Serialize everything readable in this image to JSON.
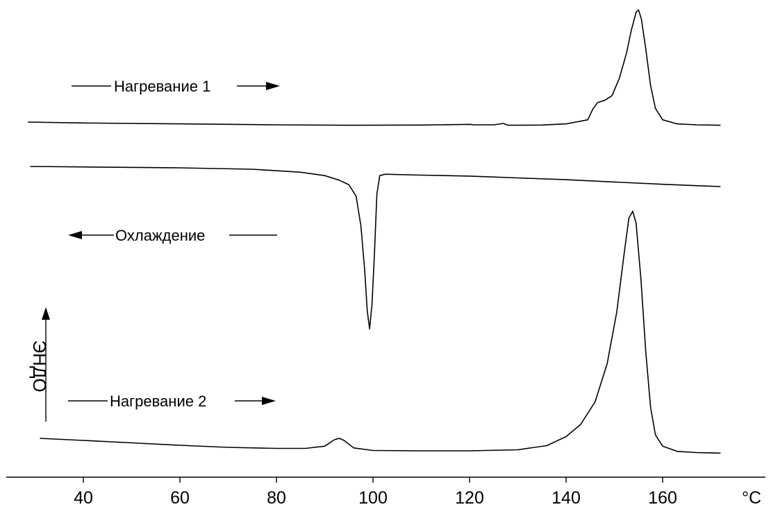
{
  "chart_data": {
    "type": "line",
    "title": "",
    "xlabel": "",
    "x_unit": "°C",
    "ylabel": "ЭНДО",
    "xlim": [
      27,
      173
    ],
    "x_ticks": [
      40,
      60,
      80,
      100,
      120,
      140,
      160
    ],
    "grid": false,
    "y_ticks": false,
    "series": [
      {
        "name": "Нагревание 1",
        "direction": "right",
        "points": [
          [
            28.5,
            0.0
          ],
          [
            40,
            -0.04
          ],
          [
            60,
            -0.08
          ],
          [
            80,
            -0.12
          ],
          [
            95,
            -0.14
          ],
          [
            110,
            -0.13
          ],
          [
            120,
            -0.1
          ],
          [
            121,
            -0.12
          ],
          [
            125,
            -0.12
          ],
          [
            127,
            -0.06
          ],
          [
            128,
            -0.14
          ],
          [
            135,
            -0.13
          ],
          [
            140,
            -0.08
          ],
          [
            143,
            0.04
          ],
          [
            144.5,
            0.1
          ],
          [
            145.5,
            0.55
          ],
          [
            146.5,
            0.85
          ],
          [
            148,
            0.95
          ],
          [
            149.5,
            1.15
          ],
          [
            151,
            1.9
          ],
          [
            152.5,
            3.0
          ],
          [
            153.5,
            4.0
          ],
          [
            154.5,
            4.8
          ],
          [
            155,
            4.9
          ],
          [
            155.6,
            4.5
          ],
          [
            156.5,
            3.2
          ],
          [
            157.5,
            1.6
          ],
          [
            158.5,
            0.6
          ],
          [
            160,
            0.1
          ],
          [
            163,
            -0.08
          ],
          [
            167,
            -0.12
          ],
          [
            172,
            -0.14
          ]
        ]
      },
      {
        "name": "Охлаждение",
        "direction": "left",
        "points": [
          [
            29,
            0.0
          ],
          [
            40,
            -0.02
          ],
          [
            60,
            -0.06
          ],
          [
            75,
            -0.12
          ],
          [
            85,
            -0.25
          ],
          [
            90,
            -0.4
          ],
          [
            93,
            -0.6
          ],
          [
            95,
            -0.8
          ],
          [
            96.5,
            -1.3
          ],
          [
            97.5,
            -2.6
          ],
          [
            98.3,
            -4.6
          ],
          [
            98.8,
            -6.3
          ],
          [
            99.3,
            -7.1
          ],
          [
            99.8,
            -6.0
          ],
          [
            100.3,
            -3.8
          ],
          [
            100.8,
            -1.2
          ],
          [
            101.4,
            -0.4
          ],
          [
            102.5,
            -0.34
          ],
          [
            110,
            -0.38
          ],
          [
            120,
            -0.42
          ],
          [
            130,
            -0.5
          ],
          [
            140,
            -0.58
          ],
          [
            150,
            -0.68
          ],
          [
            160,
            -0.78
          ],
          [
            167,
            -0.84
          ],
          [
            172,
            -0.88
          ]
        ]
      },
      {
        "name": "Нагревание 2",
        "direction": "right",
        "points": [
          [
            31,
            0.0
          ],
          [
            40,
            -0.12
          ],
          [
            50,
            -0.26
          ],
          [
            60,
            -0.4
          ],
          [
            70,
            -0.52
          ],
          [
            80,
            -0.58
          ],
          [
            86,
            -0.58
          ],
          [
            90,
            -0.45
          ],
          [
            92,
            -0.08
          ],
          [
            93,
            0.0
          ],
          [
            94,
            -0.12
          ],
          [
            96,
            -0.55
          ],
          [
            100,
            -0.7
          ],
          [
            110,
            -0.72
          ],
          [
            120,
            -0.72
          ],
          [
            130,
            -0.66
          ],
          [
            136,
            -0.42
          ],
          [
            140,
            0.1
          ],
          [
            143,
            0.8
          ],
          [
            146,
            2.1
          ],
          [
            148.5,
            4.3
          ],
          [
            150.5,
            7.3
          ],
          [
            152,
            10.6
          ],
          [
            153,
            12.7
          ],
          [
            153.8,
            13.1
          ],
          [
            154.5,
            12.4
          ],
          [
            155.5,
            9.2
          ],
          [
            156.5,
            5.0
          ],
          [
            157.5,
            1.8
          ],
          [
            158.5,
            0.2
          ],
          [
            160,
            -0.45
          ],
          [
            163,
            -0.75
          ],
          [
            167,
            -0.82
          ],
          [
            172,
            -0.85
          ]
        ]
      }
    ]
  },
  "annotations": {
    "heating1": "Нагревание 1",
    "cooling": "Охлаждение",
    "heating2": "Нагревание 2"
  },
  "y_axis_label": "ЭНДО",
  "x_unit": "°C"
}
